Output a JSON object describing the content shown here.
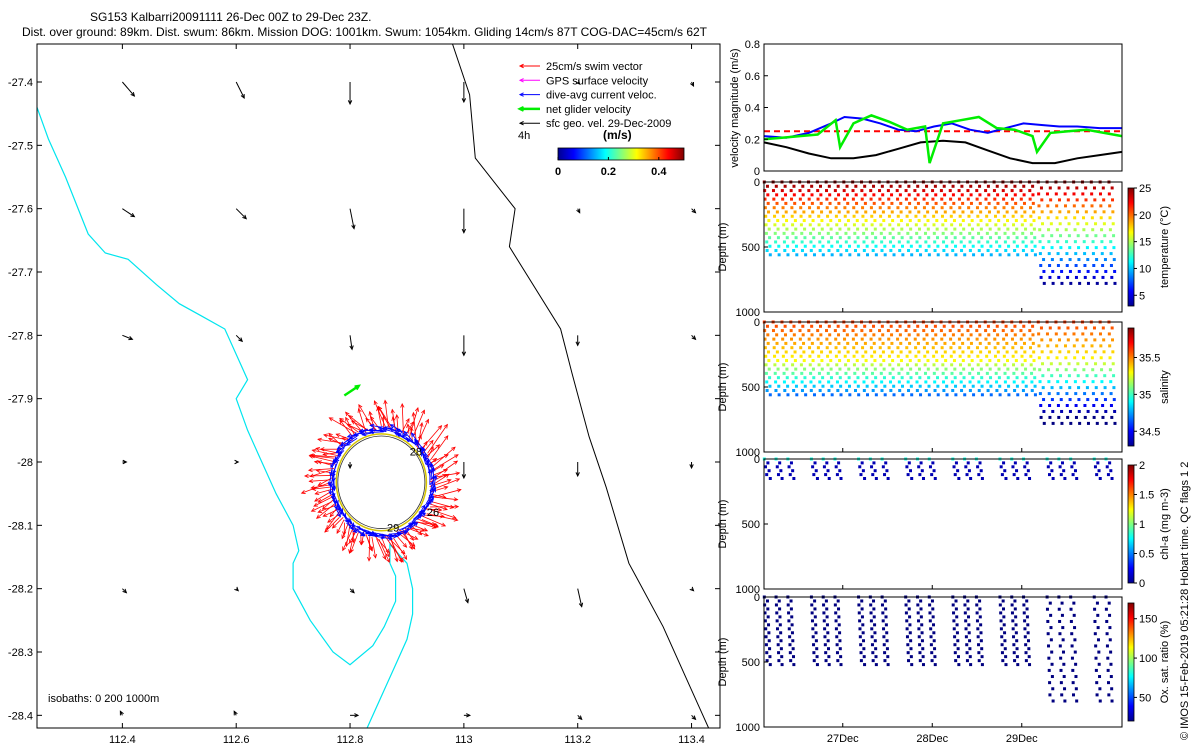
{
  "title": {
    "line1": "SG153 Kalbarri20091111 26-Dec 00Z to 29-Dec 23Z.",
    "line2": "Dist. over ground: 89km. Dist. swum: 86km. Mission DOG: 1001km. Swum: 1054km. Gliding 14cm/s 87T COG-DAC=45cm/s 62T"
  },
  "footer_credit": "© IMOS 15-Feb-2019 05:21:28 Hobart time. QC flags 1  2",
  "colors": {
    "swim": "#ff0000",
    "gps": "#ff00ff",
    "dac": "#0000ff",
    "net": "#00ee00",
    "geo": "#000000",
    "coast": "#00e5ee",
    "isobath": "#000000"
  },
  "chart_data": [
    {
      "type": "map",
      "xlim": [
        112.25,
        113.45
      ],
      "ylim": [
        -28.42,
        -27.34
      ],
      "x_ticks": [
        "112.4",
        "112.6",
        "112.8",
        "113",
        "113.2",
        "113.4"
      ],
      "y_ticks": [
        "-27.4",
        "-27.5",
        "-27.6",
        "-27.7",
        "-27.8",
        "-27.9",
        "-28",
        "-28.1",
        "-28.2",
        "-28.3",
        "-28.4"
      ],
      "legend": [
        {
          "label": "25cm/s swim vector",
          "color": "#ff0000"
        },
        {
          "label": "GPS surface velocity",
          "color": "#ff00ff"
        },
        {
          "label": "dive-avg current veloc.",
          "color": "#0000ff"
        },
        {
          "label": "net glider velocity",
          "color": "#00ee00"
        },
        {
          "label": "sfc geo. vel. 29-Dec-2009",
          "color": "#000000"
        }
      ],
      "legend_extra": "4h",
      "colorbar": {
        "label": "(m/s)",
        "ticks": [
          "0",
          "0.2",
          "0.4"
        ],
        "range": [
          0,
          0.5
        ]
      },
      "isobath_label": "isobaths: 0   200  1000m",
      "day_labels": [
        "28",
        "26",
        "29"
      ],
      "coastline": [
        [
          112.25,
          -27.44
        ],
        [
          112.27,
          -27.49
        ],
        [
          112.3,
          -27.55
        ],
        [
          112.34,
          -27.64
        ],
        [
          112.37,
          -27.67
        ],
        [
          112.41,
          -27.68
        ],
        [
          112.46,
          -27.72
        ],
        [
          112.5,
          -27.75
        ],
        [
          112.54,
          -27.77
        ],
        [
          112.58,
          -27.79
        ],
        [
          112.61,
          -27.85
        ],
        [
          112.62,
          -27.87
        ],
        [
          112.6,
          -27.9
        ],
        [
          112.62,
          -27.95
        ],
        [
          112.64,
          -27.99
        ],
        [
          112.67,
          -28.05
        ],
        [
          112.7,
          -28.1
        ],
        [
          112.71,
          -28.14
        ],
        [
          112.7,
          -28.16
        ],
        [
          112.7,
          -28.2
        ],
        [
          112.73,
          -28.25
        ],
        [
          112.77,
          -28.3
        ],
        [
          112.8,
          -28.32
        ],
        [
          112.84,
          -28.29
        ],
        [
          112.86,
          -28.26
        ],
        [
          112.88,
          -28.22
        ],
        [
          112.88,
          -28.18
        ],
        [
          112.87,
          -28.16
        ],
        [
          112.87,
          -28.13
        ],
        [
          112.9,
          -28.16
        ],
        [
          112.91,
          -28.2
        ],
        [
          112.91,
          -28.24
        ],
        [
          112.9,
          -28.28
        ],
        [
          112.88,
          -28.32
        ],
        [
          112.86,
          -28.36
        ],
        [
          112.83,
          -28.42
        ]
      ],
      "isobath_1000": [
        [
          112.98,
          -27.34
        ],
        [
          113.01,
          -27.42
        ],
        [
          113.02,
          -27.52
        ],
        [
          113.09,
          -27.6
        ],
        [
          113.08,
          -27.66
        ],
        [
          113.17,
          -27.79
        ],
        [
          113.19,
          -27.86
        ],
        [
          113.22,
          -27.96
        ],
        [
          113.25,
          -28.04
        ],
        [
          113.29,
          -28.16
        ],
        [
          113.35,
          -28.26
        ],
        [
          113.39,
          -28.34
        ],
        [
          113.42,
          -28.4
        ],
        [
          113.43,
          -28.42
        ]
      ],
      "geo_vectors": [
        {
          "lon": 112.4,
          "lat": -27.4,
          "u": 0.06,
          "v": -0.07
        },
        {
          "lon": 112.6,
          "lat": -27.4,
          "u": 0.04,
          "v": -0.08
        },
        {
          "lon": 112.8,
          "lat": -27.4,
          "u": 0.0,
          "v": -0.11
        },
        {
          "lon": 113.0,
          "lat": -27.4,
          "u": 0.0,
          "v": -0.1
        },
        {
          "lon": 113.2,
          "lat": -27.4,
          "u": 0.01,
          "v": -0.01
        },
        {
          "lon": 113.4,
          "lat": -27.4,
          "u": 0.01,
          "v": -0.02
        },
        {
          "lon": 112.4,
          "lat": -27.6,
          "u": 0.06,
          "v": -0.04
        },
        {
          "lon": 112.6,
          "lat": -27.6,
          "u": 0.05,
          "v": -0.05
        },
        {
          "lon": 112.8,
          "lat": -27.6,
          "u": 0.02,
          "v": -0.1
        },
        {
          "lon": 113.0,
          "lat": -27.6,
          "u": 0.0,
          "v": -0.12
        },
        {
          "lon": 113.2,
          "lat": -27.6,
          "u": 0.01,
          "v": -0.02
        },
        {
          "lon": 113.4,
          "lat": -27.6,
          "u": 0.02,
          "v": -0.02
        },
        {
          "lon": 112.4,
          "lat": -27.8,
          "u": 0.05,
          "v": -0.02
        },
        {
          "lon": 112.6,
          "lat": -27.8,
          "u": 0.03,
          "v": -0.03
        },
        {
          "lon": 112.8,
          "lat": -27.8,
          "u": 0.01,
          "v": -0.07
        },
        {
          "lon": 113.0,
          "lat": -27.8,
          "u": 0.0,
          "v": -0.1
        },
        {
          "lon": 113.2,
          "lat": -27.8,
          "u": 0.0,
          "v": -0.05
        },
        {
          "lon": 113.4,
          "lat": -27.8,
          "u": 0.02,
          "v": -0.02
        },
        {
          "lon": 112.4,
          "lat": -28.0,
          "u": 0.02,
          "v": 0.0
        },
        {
          "lon": 112.6,
          "lat": -28.0,
          "u": 0.01,
          "v": 0.0
        },
        {
          "lon": 112.8,
          "lat": -28.0,
          "u": 0.0,
          "v": -0.03
        },
        {
          "lon": 113.0,
          "lat": -28.0,
          "u": 0.0,
          "v": -0.08
        },
        {
          "lon": 113.2,
          "lat": -28.0,
          "u": 0.0,
          "v": -0.07
        },
        {
          "lon": 113.4,
          "lat": -28.0,
          "u": 0.0,
          "v": -0.03
        },
        {
          "lon": 112.4,
          "lat": -28.2,
          "u": 0.02,
          "v": -0.02
        },
        {
          "lon": 112.6,
          "lat": -28.2,
          "u": 0.01,
          "v": -0.01
        },
        {
          "lon": 112.8,
          "lat": -28.2,
          "u": 0.02,
          "v": -0.02
        },
        {
          "lon": 113.0,
          "lat": -28.2,
          "u": 0.02,
          "v": -0.07
        },
        {
          "lon": 113.2,
          "lat": -28.2,
          "u": 0.02,
          "v": -0.09
        },
        {
          "lon": 113.4,
          "lat": -28.2,
          "u": 0.01,
          "v": -0.01
        },
        {
          "lon": 112.4,
          "lat": -28.4,
          "u": -0.01,
          "v": 0.02
        },
        {
          "lon": 112.6,
          "lat": -28.4,
          "u": -0.01,
          "v": 0.02
        },
        {
          "lon": 112.8,
          "lat": -28.4,
          "u": 0.04,
          "v": 0.0
        },
        {
          "lon": 113.0,
          "lat": -28.4,
          "u": 0.03,
          "v": 0.0
        },
        {
          "lon": 113.2,
          "lat": -28.4,
          "u": 0.02,
          "v": -0.02
        },
        {
          "lon": 113.4,
          "lat": -28.4,
          "u": 0.02,
          "v": -0.02
        }
      ],
      "eddy_track": {
        "center_lon": 112.855,
        "center_lat": -28.032,
        "rx_lon": 0.09,
        "ry_lat": 0.085
      }
    },
    {
      "type": "line",
      "ylabel": "velocity magnitude (m/s)",
      "ylim": [
        0,
        0.8
      ],
      "y_ticks": [
        "0",
        "0.2",
        "0.4",
        "0.6",
        "0.8"
      ],
      "x_domain_days": [
        0,
        4
      ],
      "series": [
        {
          "color": "#ff0000",
          "dashed": true,
          "x": [
            0,
            4
          ],
          "y": [
            0.25,
            0.25
          ]
        },
        {
          "color": "#000000",
          "x": [
            0,
            0.25,
            0.5,
            0.75,
            1,
            1.25,
            1.5,
            1.75,
            2,
            2.25,
            2.5,
            2.75,
            3,
            3.25,
            3.5,
            3.75,
            4
          ],
          "y": [
            0.18,
            0.15,
            0.11,
            0.08,
            0.08,
            0.1,
            0.14,
            0.18,
            0.19,
            0.18,
            0.13,
            0.08,
            0.05,
            0.05,
            0.08,
            0.1,
            0.12
          ]
        },
        {
          "color": "#0000ff",
          "x": [
            0,
            0.25,
            0.5,
            0.75,
            0.9,
            1.1,
            1.3,
            1.5,
            1.7,
            1.9,
            2.1,
            2.3,
            2.5,
            2.7,
            2.9,
            3.1,
            3.3,
            3.5,
            3.75,
            4
          ],
          "y": [
            0.22,
            0.21,
            0.24,
            0.3,
            0.34,
            0.33,
            0.3,
            0.26,
            0.25,
            0.28,
            0.3,
            0.26,
            0.24,
            0.27,
            0.3,
            0.29,
            0.28,
            0.28,
            0.27,
            0.27
          ]
        },
        {
          "color": "#00ee00",
          "x": [
            0,
            0.2,
            0.4,
            0.6,
            0.8,
            0.85,
            1.0,
            1.2,
            1.4,
            1.6,
            1.8,
            1.85,
            2.0,
            2.2,
            2.4,
            2.6,
            2.8,
            3.0,
            3.05,
            3.2,
            3.4,
            3.6,
            3.8,
            4
          ],
          "y": [
            0.2,
            0.21,
            0.22,
            0.23,
            0.32,
            0.15,
            0.3,
            0.35,
            0.31,
            0.26,
            0.28,
            0.05,
            0.3,
            0.32,
            0.34,
            0.27,
            0.26,
            0.22,
            0.12,
            0.24,
            0.25,
            0.26,
            0.24,
            0.22
          ]
        }
      ]
    },
    {
      "type": "scatter",
      "ylabel": "Depth (m)",
      "ylim": [
        1000,
        0
      ],
      "y_ticks": [
        "0",
        "500",
        "1000"
      ],
      "colorbar": {
        "label": "temperature (°C)",
        "ticks": [
          "5",
          "10",
          "15",
          "20",
          "25"
        ],
        "range": [
          3,
          25
        ]
      }
    },
    {
      "type": "scatter",
      "ylabel": "Depth (m)",
      "ylim": [
        1000,
        0
      ],
      "y_ticks": [
        "0",
        "500",
        "1000"
      ],
      "colorbar": {
        "label": "salinity",
        "ticks": [
          "34.5",
          "35",
          "35.5"
        ],
        "range": [
          34.3,
          35.9
        ]
      }
    },
    {
      "type": "scatter",
      "ylabel": "Depth (m)",
      "ylim": [
        1000,
        0
      ],
      "y_ticks": [
        "0",
        "500",
        "1000"
      ],
      "colorbar": {
        "label": "chl-a (mg m-3)",
        "ticks": [
          "0",
          "0.5",
          "1",
          "1.5",
          "2"
        ],
        "range": [
          0,
          2
        ]
      }
    },
    {
      "type": "scatter",
      "ylabel": "Depth (m)",
      "ylim": [
        1000,
        0
      ],
      "y_ticks": [
        "0",
        "500",
        "1000"
      ],
      "x_ticks": [
        "27Dec",
        "28Dec",
        "29Dec"
      ],
      "colorbar": {
        "label": "Ox. sat. ratio (%)",
        "ticks": [
          "50",
          "100",
          "150"
        ],
        "range": [
          20,
          170
        ]
      }
    }
  ]
}
